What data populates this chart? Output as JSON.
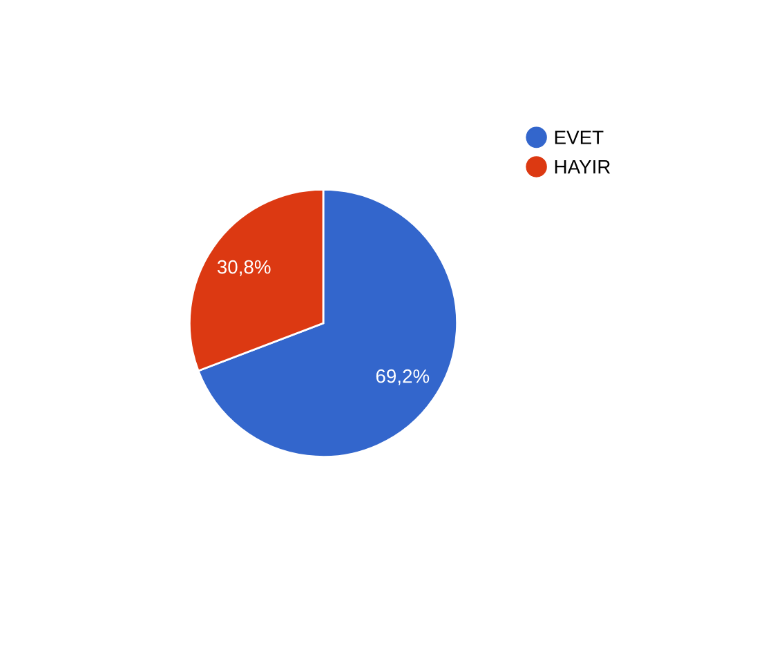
{
  "chart_data": {
    "type": "pie",
    "categories": [
      "EVET",
      "HAYIR"
    ],
    "values": [
      69.2,
      30.8
    ],
    "colors": [
      "#3366cc",
      "#dc3912"
    ],
    "value_labels": [
      "69,2%",
      "30,8%"
    ],
    "legend": "top right"
  }
}
